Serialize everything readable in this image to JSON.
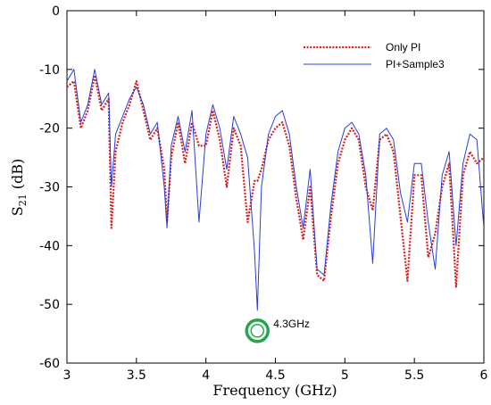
{
  "chart_data": {
    "type": "line",
    "xlabel": "Frequency (GHz)",
    "ylabel": {
      "main": "S",
      "sub": "21",
      "unit": " (dB)"
    },
    "xlim": [
      3,
      6
    ],
    "ylim": [
      -60,
      0
    ],
    "xticks": [
      "3",
      "3.5",
      "4",
      "4.5",
      "5",
      "5.5",
      "6"
    ],
    "yticks": [
      "0",
      "-10",
      "-20",
      "-30",
      "-40",
      "-50",
      "-60"
    ],
    "legend_position": "top-right",
    "annotation": {
      "text": "4.3GHz",
      "x": 4.37,
      "y": -54.5,
      "color": "#22a84a"
    },
    "series": [
      {
        "name": "Only PI",
        "color": "#d42020",
        "style": "dotted",
        "x": [
          3.0,
          3.05,
          3.1,
          3.15,
          3.2,
          3.25,
          3.3,
          3.32,
          3.35,
          3.4,
          3.45,
          3.5,
          3.55,
          3.6,
          3.65,
          3.7,
          3.72,
          3.75,
          3.8,
          3.85,
          3.9,
          3.95,
          4.0,
          4.05,
          4.1,
          4.15,
          4.2,
          4.25,
          4.3,
          4.35,
          4.37,
          4.4,
          4.45,
          4.5,
          4.55,
          4.6,
          4.65,
          4.7,
          4.75,
          4.8,
          4.85,
          4.9,
          4.95,
          5.0,
          5.05,
          5.1,
          5.15,
          5.2,
          5.25,
          5.3,
          5.35,
          5.4,
          5.45,
          5.5,
          5.55,
          5.6,
          5.65,
          5.7,
          5.75,
          5.8,
          5.85,
          5.9,
          5.95,
          6.0
        ],
        "values": [
          -13,
          -12,
          -20,
          -17,
          -11,
          -17,
          -15,
          -37,
          -24,
          -19,
          -16,
          -12,
          -17,
          -22,
          -20,
          -27,
          -36,
          -25,
          -19,
          -26,
          -19,
          -23,
          -23,
          -17,
          -22,
          -30,
          -20,
          -23,
          -36,
          -29,
          -29,
          -27,
          -22,
          -20,
          -19,
          -23,
          -32,
          -39,
          -30,
          -45,
          -46,
          -35,
          -26,
          -22,
          -20,
          -22,
          -30,
          -34,
          -22,
          -21,
          -24,
          -35,
          -46,
          -28,
          -28,
          -42,
          -38,
          -30,
          -26,
          -47,
          -28,
          -24,
          -26,
          -25
        ]
      },
      {
        "name": "PI+Sample3",
        "color": "#2a3ed6",
        "style": "solid",
        "x": [
          3.0,
          3.05,
          3.1,
          3.15,
          3.2,
          3.25,
          3.3,
          3.32,
          3.35,
          3.4,
          3.45,
          3.5,
          3.55,
          3.6,
          3.65,
          3.7,
          3.72,
          3.75,
          3.8,
          3.85,
          3.9,
          3.95,
          4.0,
          4.05,
          4.1,
          4.15,
          4.2,
          4.25,
          4.3,
          4.35,
          4.37,
          4.4,
          4.45,
          4.5,
          4.55,
          4.6,
          4.65,
          4.7,
          4.75,
          4.8,
          4.85,
          4.9,
          4.95,
          5.0,
          5.05,
          5.1,
          5.15,
          5.2,
          5.25,
          5.3,
          5.35,
          5.4,
          5.45,
          5.5,
          5.55,
          5.6,
          5.65,
          5.7,
          5.75,
          5.8,
          5.85,
          5.9,
          5.95,
          6.0
        ],
        "values": [
          -12,
          -10,
          -19,
          -16,
          -10,
          -16,
          -14,
          -30,
          -21,
          -18,
          -15,
          -13,
          -16,
          -21,
          -19,
          -30,
          -37,
          -23,
          -18,
          -24,
          -17,
          -36,
          -21,
          -16,
          -20,
          -27,
          -18,
          -21,
          -25,
          -41,
          -51,
          -30,
          -21,
          -18,
          -17,
          -21,
          -30,
          -37,
          -27,
          -44,
          -45,
          -33,
          -24,
          -20,
          -19,
          -21,
          -28,
          -43,
          -21,
          -20,
          -22,
          -31,
          -36,
          -26,
          -26,
          -36,
          -44,
          -28,
          -24,
          -40,
          -26,
          -21,
          -22,
          -37
        ]
      }
    ]
  }
}
